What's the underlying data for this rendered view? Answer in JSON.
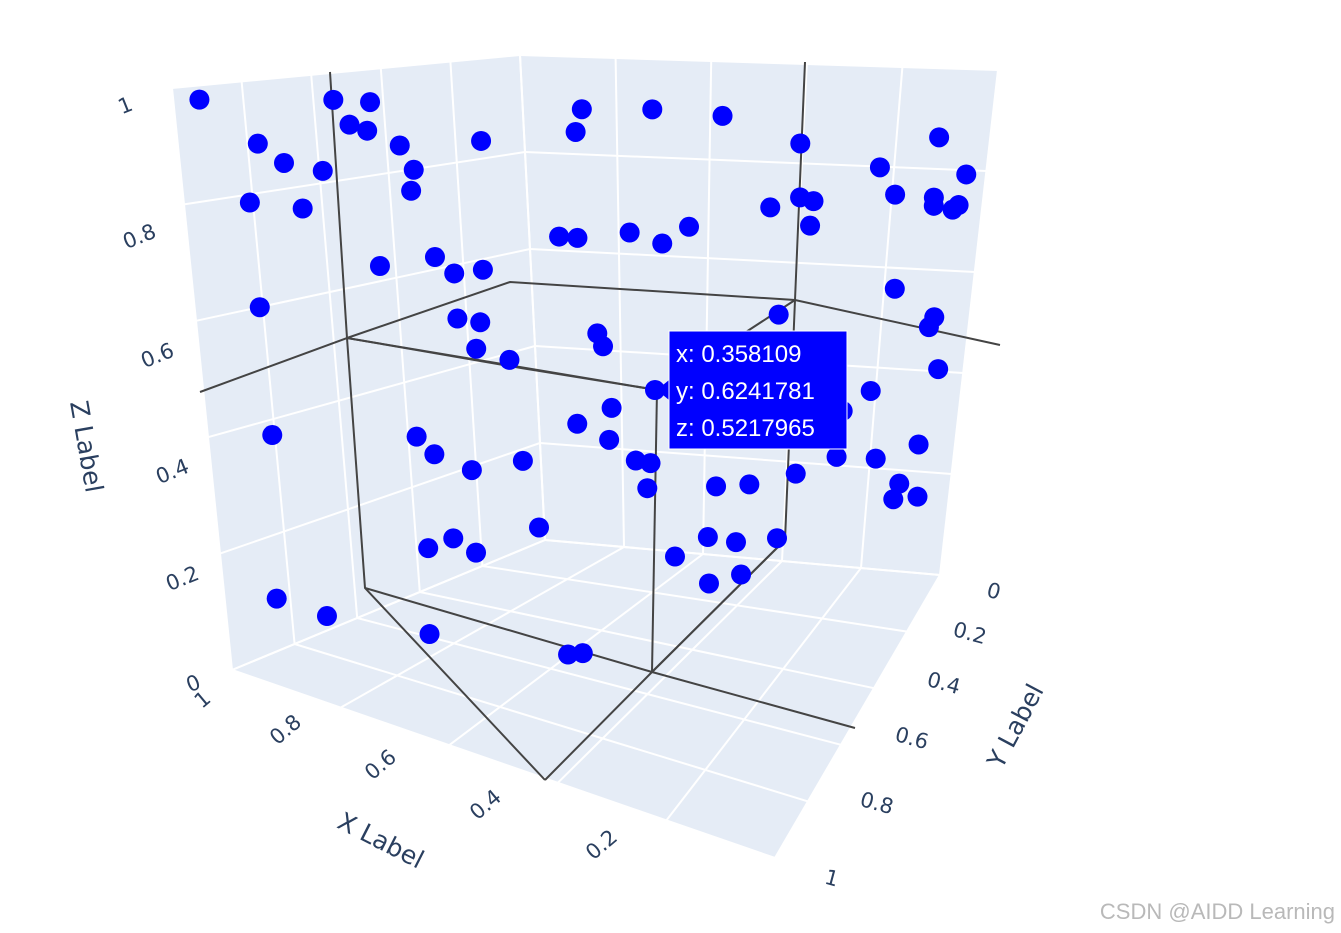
{
  "chart_data": {
    "type": "scatter",
    "axes": {
      "x": {
        "title": "X Label",
        "ticks": [
          "0",
          "0.2",
          "0.4",
          "0.6",
          "0.8",
          "1"
        ]
      },
      "y": {
        "title": "Y Label",
        "ticks": [
          "0",
          "0.2",
          "0.4",
          "0.6",
          "0.8",
          "1"
        ]
      },
      "z": {
        "title": "Z Label",
        "ticks": [
          "0",
          "0.2",
          "0.4",
          "0.6",
          "0.8",
          "1"
        ]
      }
    },
    "marker_color": "#0000ff",
    "plot_bgcolor": "#e5ecf6",
    "grid_color": "#ffffff",
    "spike_color": "#444444",
    "hover": {
      "x": "x: 0.358109",
      "y": "y: 0.6241781",
      "z": "z: 0.5217965"
    },
    "points_note_units": "data units",
    "points": [
      [
        0.97,
        0.03,
        0.98
      ],
      [
        0.88,
        0.05,
        0.91
      ],
      [
        0.84,
        0.06,
        0.88
      ],
      [
        0.9,
        0.04,
        0.81
      ],
      [
        0.78,
        0.08,
        0.87
      ],
      [
        0.74,
        0.07,
        0.99
      ],
      [
        0.72,
        0.08,
        0.95
      ],
      [
        0.7,
        0.1,
        0.94
      ],
      [
        0.67,
        0.07,
        0.99
      ],
      [
        0.64,
        0.1,
        0.92
      ],
      [
        0.63,
        0.12,
        0.88
      ],
      [
        0.62,
        0.09,
        0.85
      ],
      [
        0.52,
        0.16,
        0.93
      ],
      [
        0.36,
        0.2,
        0.95
      ],
      [
        0.32,
        0.16,
        0.99
      ],
      [
        0.22,
        0.22,
        0.99
      ],
      [
        0.12,
        0.28,
        0.98
      ],
      [
        0.17,
        0.62,
        0.9
      ],
      [
        0.1,
        0.78,
        0.84
      ],
      [
        0.05,
        0.9,
        0.88
      ],
      [
        0.13,
        0.55,
        0.82
      ],
      [
        0.12,
        0.58,
        0.81
      ],
      [
        0.22,
        0.6,
        0.79
      ],
      [
        0.04,
        0.88,
        0.77
      ],
      [
        0.02,
        0.92,
        0.74
      ],
      [
        0.8,
        0.04,
        0.81
      ],
      [
        0.7,
        0.1,
        0.72
      ],
      [
        0.58,
        0.08,
        0.75
      ],
      [
        0.57,
        0.12,
        0.72
      ],
      [
        0.55,
        0.18,
        0.72
      ],
      [
        0.42,
        0.22,
        0.78
      ],
      [
        0.42,
        0.28,
        0.77
      ],
      [
        0.34,
        0.32,
        0.78
      ],
      [
        0.3,
        0.36,
        0.76
      ],
      [
        0.28,
        0.42,
        0.78
      ],
      [
        0.15,
        0.62,
        0.76
      ],
      [
        0.1,
        0.84,
        0.78
      ],
      [
        0.05,
        0.9,
        0.75
      ],
      [
        0.03,
        0.96,
        0.74
      ],
      [
        0.02,
        0.96,
        0.8
      ],
      [
        0.94,
        0.1,
        0.62
      ],
      [
        0.62,
        0.2,
        0.63
      ],
      [
        0.6,
        0.24,
        0.62
      ],
      [
        0.6,
        0.22,
        0.58
      ],
      [
        0.56,
        0.26,
        0.56
      ],
      [
        0.44,
        0.36,
        0.6
      ],
      [
        0.43,
        0.36,
        0.58
      ],
      [
        0.36,
        0.62,
        0.52
      ],
      [
        0.26,
        0.7,
        0.58
      ],
      [
        0.1,
        0.86,
        0.6
      ],
      [
        0.06,
        0.96,
        0.52
      ],
      [
        0.07,
        0.96,
        0.5
      ],
      [
        0.12,
        0.82,
        0.42
      ],
      [
        0.15,
        0.76,
        0.4
      ],
      [
        0.94,
        0.1,
        0.4
      ],
      [
        0.72,
        0.2,
        0.42
      ],
      [
        0.7,
        0.22,
        0.39
      ],
      [
        0.64,
        0.24,
        0.37
      ],
      [
        0.56,
        0.28,
        0.39
      ],
      [
        0.48,
        0.34,
        0.45
      ],
      [
        0.44,
        0.38,
        0.42
      ],
      [
        0.41,
        0.42,
        0.38
      ],
      [
        0.38,
        0.42,
        0.38
      ],
      [
        0.4,
        0.44,
        0.33
      ],
      [
        0.32,
        0.56,
        0.31
      ],
      [
        0.28,
        0.62,
        0.3
      ],
      [
        0.22,
        0.7,
        0.3
      ],
      [
        0.12,
        0.86,
        0.28
      ],
      [
        0.06,
        0.94,
        0.28
      ],
      [
        0.08,
        0.9,
        0.22
      ],
      [
        0.7,
        0.26,
        0.24
      ],
      [
        0.68,
        0.3,
        0.21
      ],
      [
        0.74,
        0.24,
        0.22
      ],
      [
        0.56,
        0.32,
        0.27
      ],
      [
        0.38,
        0.5,
        0.2
      ],
      [
        0.34,
        0.56,
        0.22
      ],
      [
        0.26,
        0.7,
        0.18
      ],
      [
        0.1,
        0.92,
        0.18
      ],
      [
        0.06,
        0.96,
        0.17
      ],
      [
        0.95,
        0.08,
        0.12
      ],
      [
        0.88,
        0.12,
        0.1
      ],
      [
        0.74,
        0.22,
        0.08
      ],
      [
        0.54,
        0.36,
        0.05
      ],
      [
        0.52,
        0.38,
        0.05
      ],
      [
        0.34,
        0.56,
        0.14
      ],
      [
        0.3,
        0.62,
        0.14
      ],
      [
        0.28,
        0.56,
        0.22
      ],
      [
        0.18,
        0.8,
        0.3
      ],
      [
        0.04,
        0.96,
        0.42
      ],
      [
        0.42,
        0.36,
        0.48
      ]
    ]
  },
  "watermark": "CSDN @AIDD Learning"
}
